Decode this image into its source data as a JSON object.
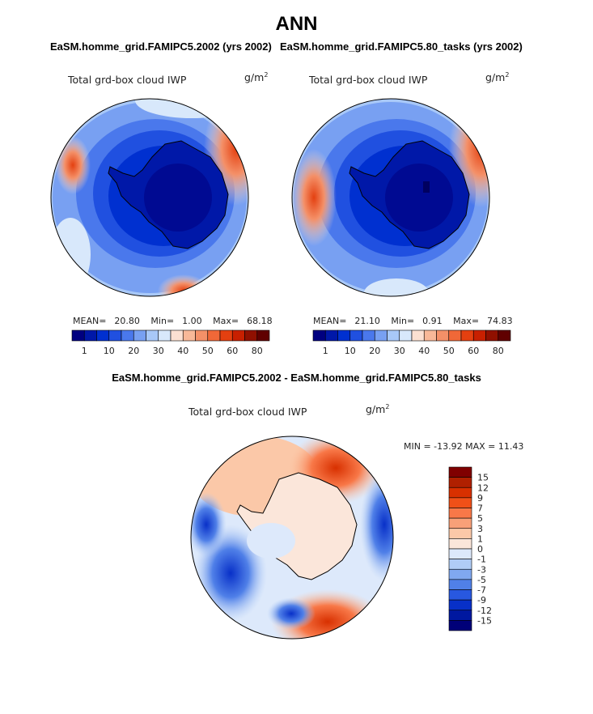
{
  "title": "ANN",
  "panels": [
    {
      "case_title": "EaSM.homme_grid.FAMIPC5.2002 (yrs 2002)",
      "variable": "Total grd-box cloud IWP",
      "units_base": "g/m",
      "units_exp": "2",
      "mean_label": "MEAN=",
      "mean": "20.80",
      "min_label": "Min=",
      "min": "1.00",
      "max_label": "Max=",
      "max": "68.18"
    },
    {
      "case_title": "EaSM.homme_grid.FAMIPC5.80_tasks (yrs 2002)",
      "variable": "Total grd-box cloud IWP",
      "units_base": "g/m",
      "units_exp": "2",
      "mean_label": "MEAN=",
      "mean": "21.10",
      "min_label": "Min=",
      "min": "0.91",
      "max_label": "Max=",
      "max": "74.83"
    }
  ],
  "diff": {
    "title": "EaSM.homme_grid.FAMIPC5.2002 - EaSM.homme_grid.FAMIPC5.80_tasks",
    "variable": "Total grd-box cloud IWP",
    "units_base": "g/m",
    "units_exp": "2",
    "minmax_text": "MIN = -13.92  MAX =  11.43"
  },
  "colorbar_abs": {
    "labels": [
      "1",
      "10",
      "20",
      "30",
      "40",
      "50",
      "60",
      "80"
    ],
    "colors": [
      "#000080",
      "#0018a8",
      "#0030d0",
      "#2050e0",
      "#4a78ec",
      "#78a0f2",
      "#a8c8f8",
      "#d8e8fb",
      "#fbe0d2",
      "#f8b898",
      "#f49068",
      "#f06838",
      "#e44010",
      "#c82000",
      "#901000",
      "#600000"
    ]
  },
  "colorbar_diff": {
    "labels": [
      "15",
      "12",
      "9",
      "7",
      "5",
      "3",
      "1",
      "0",
      "-1",
      "-3",
      "-5",
      "-7",
      "-9",
      "-12",
      "-15"
    ],
    "colors": [
      "#800000",
      "#b02000",
      "#d83000",
      "#f05018",
      "#f87848",
      "#f8a078",
      "#fbc8a8",
      "#fbe6da",
      "#dde9fb",
      "#b0ccf6",
      "#80a8f0",
      "#5080e8",
      "#2858e0",
      "#0830c8",
      "#0018a0",
      "#000078"
    ]
  },
  "chart_data": [
    {
      "type": "heatmap",
      "projection": "south polar stereographic",
      "title": "EaSM.homme_grid.FAMIPC5.2002 (yrs 2002)",
      "variable": "Total grd-box cloud IWP",
      "units": "g/m^2",
      "mean": 20.8,
      "min": 1.0,
      "max": 68.18,
      "levels": [
        1,
        5,
        10,
        15,
        20,
        25,
        30,
        35,
        40,
        45,
        50,
        55,
        60,
        70,
        80
      ]
    },
    {
      "type": "heatmap",
      "projection": "south polar stereographic",
      "title": "EaSM.homme_grid.FAMIPC5.80_tasks (yrs 2002)",
      "variable": "Total grd-box cloud IWP",
      "units": "g/m^2",
      "mean": 21.1,
      "min": 0.91,
      "max": 74.83,
      "levels": [
        1,
        5,
        10,
        15,
        20,
        25,
        30,
        35,
        40,
        45,
        50,
        55,
        60,
        70,
        80
      ]
    },
    {
      "type": "heatmap",
      "projection": "south polar stereographic",
      "title": "EaSM.homme_grid.FAMIPC5.2002 - EaSM.homme_grid.FAMIPC5.80_tasks",
      "variable": "Total grd-box cloud IWP",
      "units": "g/m^2",
      "min": -13.92,
      "max": 11.43,
      "levels": [
        -15,
        -12,
        -9,
        -7,
        -5,
        -3,
        -1,
        0,
        1,
        3,
        5,
        7,
        9,
        12,
        15
      ]
    }
  ]
}
